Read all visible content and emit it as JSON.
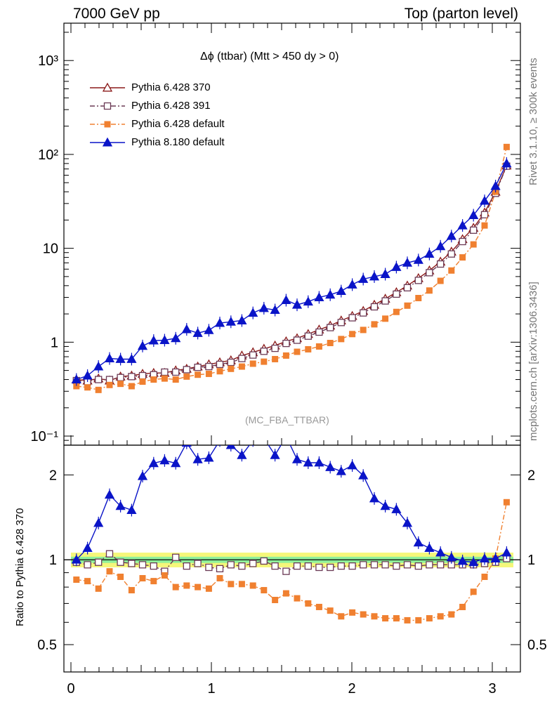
{
  "header": {
    "left": "7000 GeV pp",
    "right": "Top (parton level)"
  },
  "side_labels": {
    "rivet": "Rivet 3.1.10, ≥ 300k events",
    "mcplots": "mcplots.cern.ch [arXiv:1306.3436]"
  },
  "plot_title": "Δϕ (ttbar) (Mtt > 450 dy > 0)",
  "watermark": "(MC_FBA_TTBAR)",
  "ratio_ylabel": "Ratio to Pythia 6.428 370",
  "legend": [
    {
      "label": "Pythia 6.428 370",
      "marker": "open-triangle",
      "color": "#8b1a1a",
      "dash": "solid"
    },
    {
      "label": "Pythia 6.428 391",
      "marker": "open-square",
      "color": "#6b3a55",
      "dash": "dash-dot"
    },
    {
      "label": "Pythia 6.428 default",
      "marker": "filled-square",
      "color": "#f08030",
      "dash": "dash-dot"
    },
    {
      "label": "Pythia 8.180 default",
      "marker": "filled-triangle",
      "color": "#0a14c8",
      "dash": "solid"
    }
  ],
  "chart_data": [
    {
      "type": "line",
      "panel": "main",
      "yscale": "log",
      "ylim": [
        0.08,
        2500
      ],
      "xlim": [
        -0.05,
        3.2
      ],
      "y_tick_labels": [
        "10⁻¹",
        "1",
        "10",
        "10²",
        "10³"
      ],
      "x": [
        0.039,
        0.118,
        0.196,
        0.275,
        0.353,
        0.432,
        0.51,
        0.589,
        0.667,
        0.746,
        0.824,
        0.903,
        0.982,
        1.06,
        1.139,
        1.217,
        1.296,
        1.374,
        1.453,
        1.532,
        1.61,
        1.689,
        1.767,
        1.846,
        1.924,
        2.003,
        2.081,
        2.16,
        2.238,
        2.317,
        2.395,
        2.474,
        2.552,
        2.631,
        2.709,
        2.788,
        2.866,
        2.945,
        3.023,
        3.102
      ],
      "series": [
        {
          "name": "Pythia 6.428 370",
          "color": "#8b1a1a",
          "values": [
            0.4,
            0.39,
            0.41,
            0.39,
            0.43,
            0.44,
            0.46,
            0.47,
            0.47,
            0.5,
            0.52,
            0.55,
            0.58,
            0.61,
            0.64,
            0.72,
            0.78,
            0.85,
            0.92,
            1.02,
            1.1,
            1.22,
            1.36,
            1.5,
            1.7,
            1.9,
            2.15,
            2.5,
            2.9,
            3.4,
            4.0,
            4.8,
            5.8,
            7.2,
            9.2,
            12.5,
            16.5,
            24.0,
            40.0,
            76.0
          ]
        },
        {
          "name": "Pythia 6.428 391",
          "color": "#6b3a55",
          "values": [
            0.39,
            0.38,
            0.4,
            0.4,
            0.42,
            0.43,
            0.44,
            0.45,
            0.48,
            0.48,
            0.51,
            0.54,
            0.55,
            0.58,
            0.61,
            0.67,
            0.73,
            0.8,
            0.86,
            0.97,
            1.05,
            1.16,
            1.28,
            1.43,
            1.62,
            1.82,
            2.05,
            2.38,
            2.75,
            3.25,
            3.8,
            4.55,
            5.5,
            6.8,
            8.7,
            11.8,
            15.6,
            22.8,
            38.5,
            75.0
          ]
        },
        {
          "name": "Pythia 6.428 default",
          "color": "#f08030",
          "values": [
            0.34,
            0.33,
            0.31,
            0.35,
            0.36,
            0.34,
            0.38,
            0.4,
            0.41,
            0.4,
            0.43,
            0.45,
            0.46,
            0.49,
            0.52,
            0.55,
            0.59,
            0.62,
            0.66,
            0.72,
            0.79,
            0.84,
            0.9,
            0.98,
            1.08,
            1.22,
            1.35,
            1.55,
            1.78,
            2.1,
            2.45,
            2.95,
            3.55,
            4.5,
            5.8,
            8.0,
            11.0,
            17.5,
            40.0,
            120.0
          ]
        },
        {
          "name": "Pythia 8.180 default",
          "color": "#0a14c8",
          "values": [
            0.4,
            0.44,
            0.55,
            0.67,
            0.66,
            0.66,
            0.91,
            1.04,
            1.05,
            1.1,
            1.37,
            1.25,
            1.34,
            1.6,
            1.65,
            1.7,
            2.05,
            2.3,
            2.2,
            2.8,
            2.5,
            2.7,
            3.0,
            3.2,
            3.5,
            4.1,
            4.7,
            5.0,
            5.3,
            6.3,
            7.0,
            7.5,
            8.7,
            10.5,
            13.5,
            17.5,
            22.5,
            32.0,
            46.0,
            80.0
          ]
        }
      ]
    },
    {
      "type": "line",
      "panel": "ratio",
      "yscale": "log",
      "ylim": [
        0.4,
        2.55
      ],
      "xlim": [
        -0.05,
        3.2
      ],
      "y_tick_labels": [
        "0.5",
        "1",
        "2"
      ],
      "x_tick_labels": [
        "0",
        "1",
        "2",
        "3"
      ],
      "x": [
        0.039,
        0.118,
        0.196,
        0.275,
        0.353,
        0.432,
        0.51,
        0.589,
        0.667,
        0.746,
        0.824,
        0.903,
        0.982,
        1.06,
        1.139,
        1.217,
        1.296,
        1.374,
        1.453,
        1.532,
        1.61,
        1.689,
        1.767,
        1.846,
        1.924,
        2.003,
        2.081,
        2.16,
        2.238,
        2.317,
        2.395,
        2.474,
        2.552,
        2.631,
        2.709,
        2.788,
        2.866,
        2.945,
        3.023,
        3.102
      ],
      "band": {
        "inner_half_width": 0.025,
        "outer_half_width": 0.06
      },
      "series": [
        {
          "name": "Pythia 6.428 391",
          "color": "#6b3a55",
          "values": [
            0.98,
            0.96,
            0.98,
            1.05,
            0.98,
            0.97,
            0.96,
            0.95,
            0.91,
            1.02,
            0.95,
            0.97,
            0.94,
            0.93,
            0.96,
            0.95,
            0.97,
            0.99,
            0.95,
            0.91,
            0.95,
            0.95,
            0.94,
            0.94,
            0.95,
            0.95,
            0.96,
            0.96,
            0.96,
            0.95,
            0.96,
            0.95,
            0.96,
            0.96,
            0.96,
            0.96,
            0.96,
            0.97,
            0.98,
            1.01
          ]
        },
        {
          "name": "Pythia 6.428 default",
          "color": "#f08030",
          "values": [
            0.85,
            0.84,
            0.79,
            0.91,
            0.87,
            0.78,
            0.86,
            0.84,
            0.88,
            0.8,
            0.81,
            0.8,
            0.79,
            0.86,
            0.82,
            0.82,
            0.81,
            0.78,
            0.72,
            0.76,
            0.73,
            0.7,
            0.68,
            0.66,
            0.63,
            0.65,
            0.64,
            0.63,
            0.62,
            0.62,
            0.61,
            0.61,
            0.62,
            0.63,
            0.64,
            0.68,
            0.77,
            0.87,
            1.01,
            1.6
          ]
        },
        {
          "name": "Pythia 8.180 default",
          "color": "#0a14c8",
          "values": [
            1.0,
            1.1,
            1.35,
            1.7,
            1.55,
            1.5,
            1.98,
            2.2,
            2.25,
            2.2,
            2.6,
            2.27,
            2.3,
            2.65,
            2.55,
            2.35,
            2.65,
            2.7,
            2.35,
            2.74,
            2.27,
            2.21,
            2.21,
            2.13,
            2.06,
            2.16,
            1.99,
            1.65,
            1.55,
            1.51,
            1.35,
            1.15,
            1.1,
            1.06,
            1.02,
            0.99,
            0.98,
            1.01,
            1.01,
            1.06
          ]
        }
      ]
    }
  ]
}
